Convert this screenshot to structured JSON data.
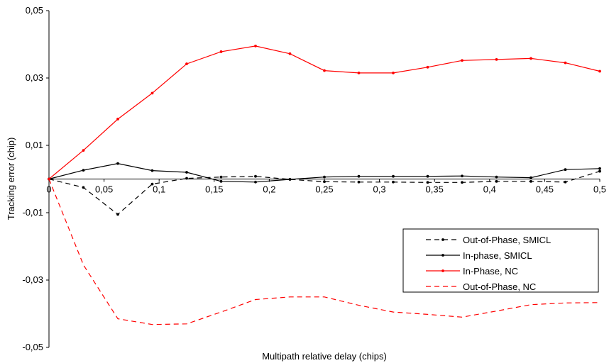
{
  "chart_data": {
    "type": "line",
    "title": "",
    "xlabel": "Multipath relative delay (chips)",
    "ylabel": "Tracking error (chip)",
    "xlim": [
      0,
      0.5
    ],
    "ylim": [
      -0.05,
      0.05
    ],
    "x_ticks": [
      0,
      0.05,
      0.1,
      0.15,
      0.2,
      0.25,
      0.3,
      0.35,
      0.4,
      0.45,
      0.5
    ],
    "x_tick_labels": [
      "0",
      "0,05",
      "0,1",
      "0,15",
      "0,2",
      "0,25",
      "0,3",
      "0,35",
      "0,4",
      "0,45",
      "0,5"
    ],
    "y_ticks": [
      0.05,
      0.03,
      0.01,
      -0.01,
      -0.03,
      -0.05
    ],
    "y_tick_labels": [
      "0,05",
      "0,03",
      "0,01",
      "-0,01",
      "-0,03",
      "-0,05"
    ],
    "grid": false,
    "legend_position": "right",
    "x": [
      0,
      0.03125,
      0.0625,
      0.09375,
      0.125,
      0.15625,
      0.1875,
      0.21875,
      0.25,
      0.28125,
      0.3125,
      0.34375,
      0.375,
      0.40625,
      0.4375,
      0.46875,
      0.5
    ],
    "series": [
      {
        "name": "Out-of-Phase, SMICL",
        "color": "#000000",
        "dashed": true,
        "marker": true,
        "values": [
          0,
          -0.0025,
          -0.0105,
          -0.0015,
          0.0002,
          0.0006,
          0.0008,
          -0.0001,
          -0.0008,
          -0.0009,
          -0.0009,
          -0.001,
          -0.001,
          -0.0007,
          -0.0007,
          -0.0009,
          0.0023
        ]
      },
      {
        "name": "In-phase, SMICL",
        "color": "#000000",
        "dashed": false,
        "marker": true,
        "values": [
          0,
          0.0026,
          0.0046,
          0.0025,
          0.002,
          -0.0007,
          -0.0009,
          -0.0001,
          0.0006,
          0.0008,
          0.0008,
          0.0008,
          0.0009,
          0.0006,
          0.0004,
          0.0028,
          0.0031
        ]
      },
      {
        "name": "In-Phase, NC",
        "color": "#ff0000",
        "dashed": false,
        "marker": true,
        "values": [
          0,
          0.0085,
          0.0178,
          0.0255,
          0.0342,
          0.0378,
          0.0395,
          0.0372,
          0.0322,
          0.0315,
          0.0315,
          0.0332,
          0.0352,
          0.0355,
          0.0358,
          0.0345,
          0.032
        ]
      },
      {
        "name": "Out-of-Phase, NC",
        "color": "#ff0000",
        "dashed": true,
        "marker": false,
        "values": [
          0,
          -0.0255,
          -0.0415,
          -0.0432,
          -0.043,
          -0.0395,
          -0.0358,
          -0.035,
          -0.035,
          -0.0375,
          -0.0395,
          -0.0402,
          -0.041,
          -0.0392,
          -0.0373,
          -0.0368,
          -0.0367
        ]
      }
    ]
  }
}
